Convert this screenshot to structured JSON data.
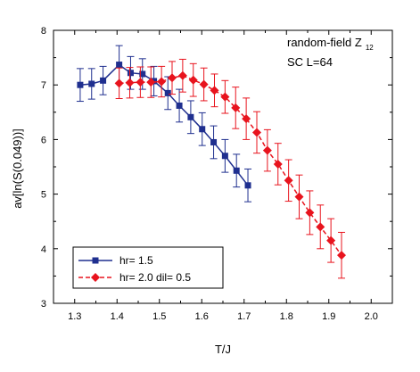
{
  "chart_data": {
    "type": "line",
    "xlabel": "T/J",
    "ylabel": "av[ln(S(0.049))]",
    "xlim": [
      1.25,
      2.05
    ],
    "ylim": [
      3,
      8
    ],
    "xticks": [
      1.3,
      1.4,
      1.5,
      1.6,
      1.7,
      1.8,
      1.9,
      2.0
    ],
    "yticks": [
      3,
      4,
      5,
      6,
      7,
      8
    ],
    "xtick_labels": [
      "1.3",
      "1.4",
      "1.5",
      "1.6",
      "1.7",
      "1.8",
      "1.9",
      "2.0"
    ],
    "ytick_labels": [
      "3",
      "4",
      "5",
      "6",
      "7",
      "8"
    ],
    "grid": false,
    "legend_position": "bottom-left",
    "annotations": {
      "line1_main": "random-field Z",
      "line1_sub": "12",
      "line2": "SC  L=64"
    },
    "series": [
      {
        "name": "hr= 1.5",
        "color": "#1f2f8f",
        "marker": "square",
        "line_style": "solid",
        "x": [
          1.313,
          1.34,
          1.367,
          1.405,
          1.432,
          1.46,
          1.487,
          1.52,
          1.547,
          1.574,
          1.601,
          1.628,
          1.655,
          1.682,
          1.709,
          1.75
        ],
        "y": [
          7.0,
          7.02,
          7.08,
          7.37,
          7.22,
          7.2,
          7.07,
          6.85,
          6.62,
          6.41,
          6.19,
          5.95,
          5.7,
          5.43,
          5.16,
          null
        ],
        "yerr": [
          0.3,
          0.28,
          0.26,
          0.35,
          0.3,
          0.28,
          0.27,
          0.3,
          0.3,
          0.3,
          0.3,
          0.3,
          0.3,
          0.3,
          0.3,
          0.3
        ]
      },
      {
        "name": "hr= 2.0  dil= 0.5",
        "color": "#e8141e",
        "marker": "diamond",
        "line_style": "dashed",
        "x": [
          1.405,
          1.43,
          1.455,
          1.48,
          1.505,
          1.53,
          1.555,
          1.58,
          1.605,
          1.63,
          1.655,
          1.68,
          1.705,
          1.73,
          1.755,
          1.78,
          1.805,
          1.83,
          1.855,
          1.88,
          1.905,
          1.93,
          1.955,
          1.98,
          2.0
        ],
        "y": [
          7.03,
          7.04,
          7.05,
          7.05,
          7.06,
          7.13,
          7.17,
          7.09,
          7.01,
          6.9,
          6.78,
          6.58,
          6.38,
          6.13,
          5.8,
          5.55,
          5.25,
          4.95,
          4.66,
          4.4,
          4.15,
          3.88,
          null,
          null,
          null
        ],
        "yerr": [
          0.28,
          0.28,
          0.28,
          0.28,
          0.28,
          0.3,
          0.3,
          0.3,
          0.3,
          0.3,
          0.3,
          0.38,
          0.38,
          0.38,
          0.38,
          0.38,
          0.38,
          0.4,
          0.4,
          0.4,
          0.4,
          0.42,
          0.42,
          0.42,
          0.42
        ]
      }
    ]
  }
}
